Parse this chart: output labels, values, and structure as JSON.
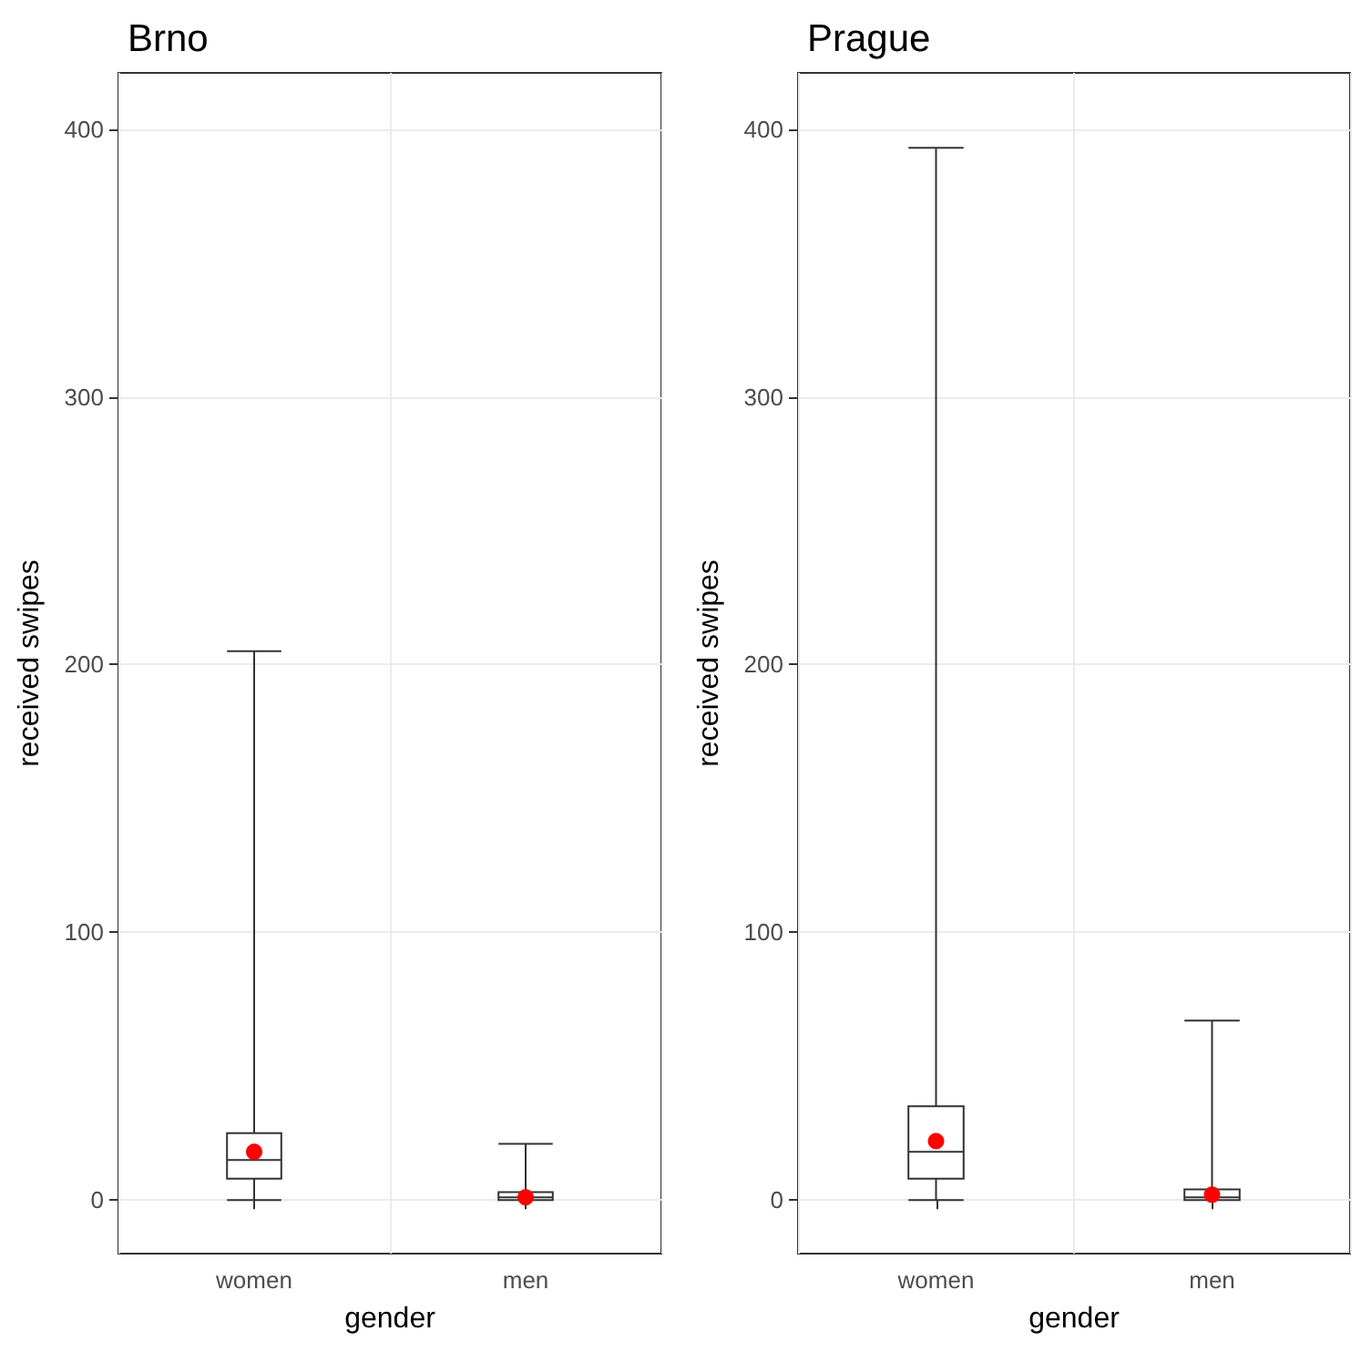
{
  "chart_data": [
    {
      "type": "box",
      "title": "Brno",
      "xlabel": "gender",
      "ylabel": "received swipes",
      "categories": [
        "women",
        "men"
      ],
      "ylim": [
        -20,
        421
      ],
      "yticks": [
        0,
        100,
        200,
        300,
        400
      ],
      "grid": true,
      "series": [
        {
          "type": "box",
          "color": "#333333",
          "boxes": [
            {
              "low": 0,
              "q1": 8,
              "median": 15,
              "q3": 25,
              "high": 205
            },
            {
              "low": 0,
              "q1": 0,
              "median": 1,
              "q3": 3,
              "high": 21
            }
          ]
        },
        {
          "type": "scatter",
          "color": "#ff0000",
          "x": [
            "women",
            "men"
          ],
          "values": [
            18,
            1
          ]
        }
      ]
    },
    {
      "type": "box",
      "title": "Prague",
      "xlabel": "gender",
      "ylabel": "received swipes",
      "categories": [
        "women",
        "men"
      ],
      "ylim": [
        -20,
        421
      ],
      "yticks": [
        0,
        100,
        200,
        300,
        400
      ],
      "grid": true,
      "series": [
        {
          "type": "box",
          "color": "#333333",
          "boxes": [
            {
              "low": 0,
              "q1": 8,
              "median": 18,
              "q3": 35,
              "high": 393
            },
            {
              "low": 0,
              "q1": 0,
              "median": 1,
              "q3": 4,
              "high": 67
            }
          ]
        },
        {
          "type": "scatter",
          "color": "#ff0000",
          "x": [
            "women",
            "men"
          ],
          "values": [
            22,
            2
          ]
        }
      ]
    }
  ]
}
